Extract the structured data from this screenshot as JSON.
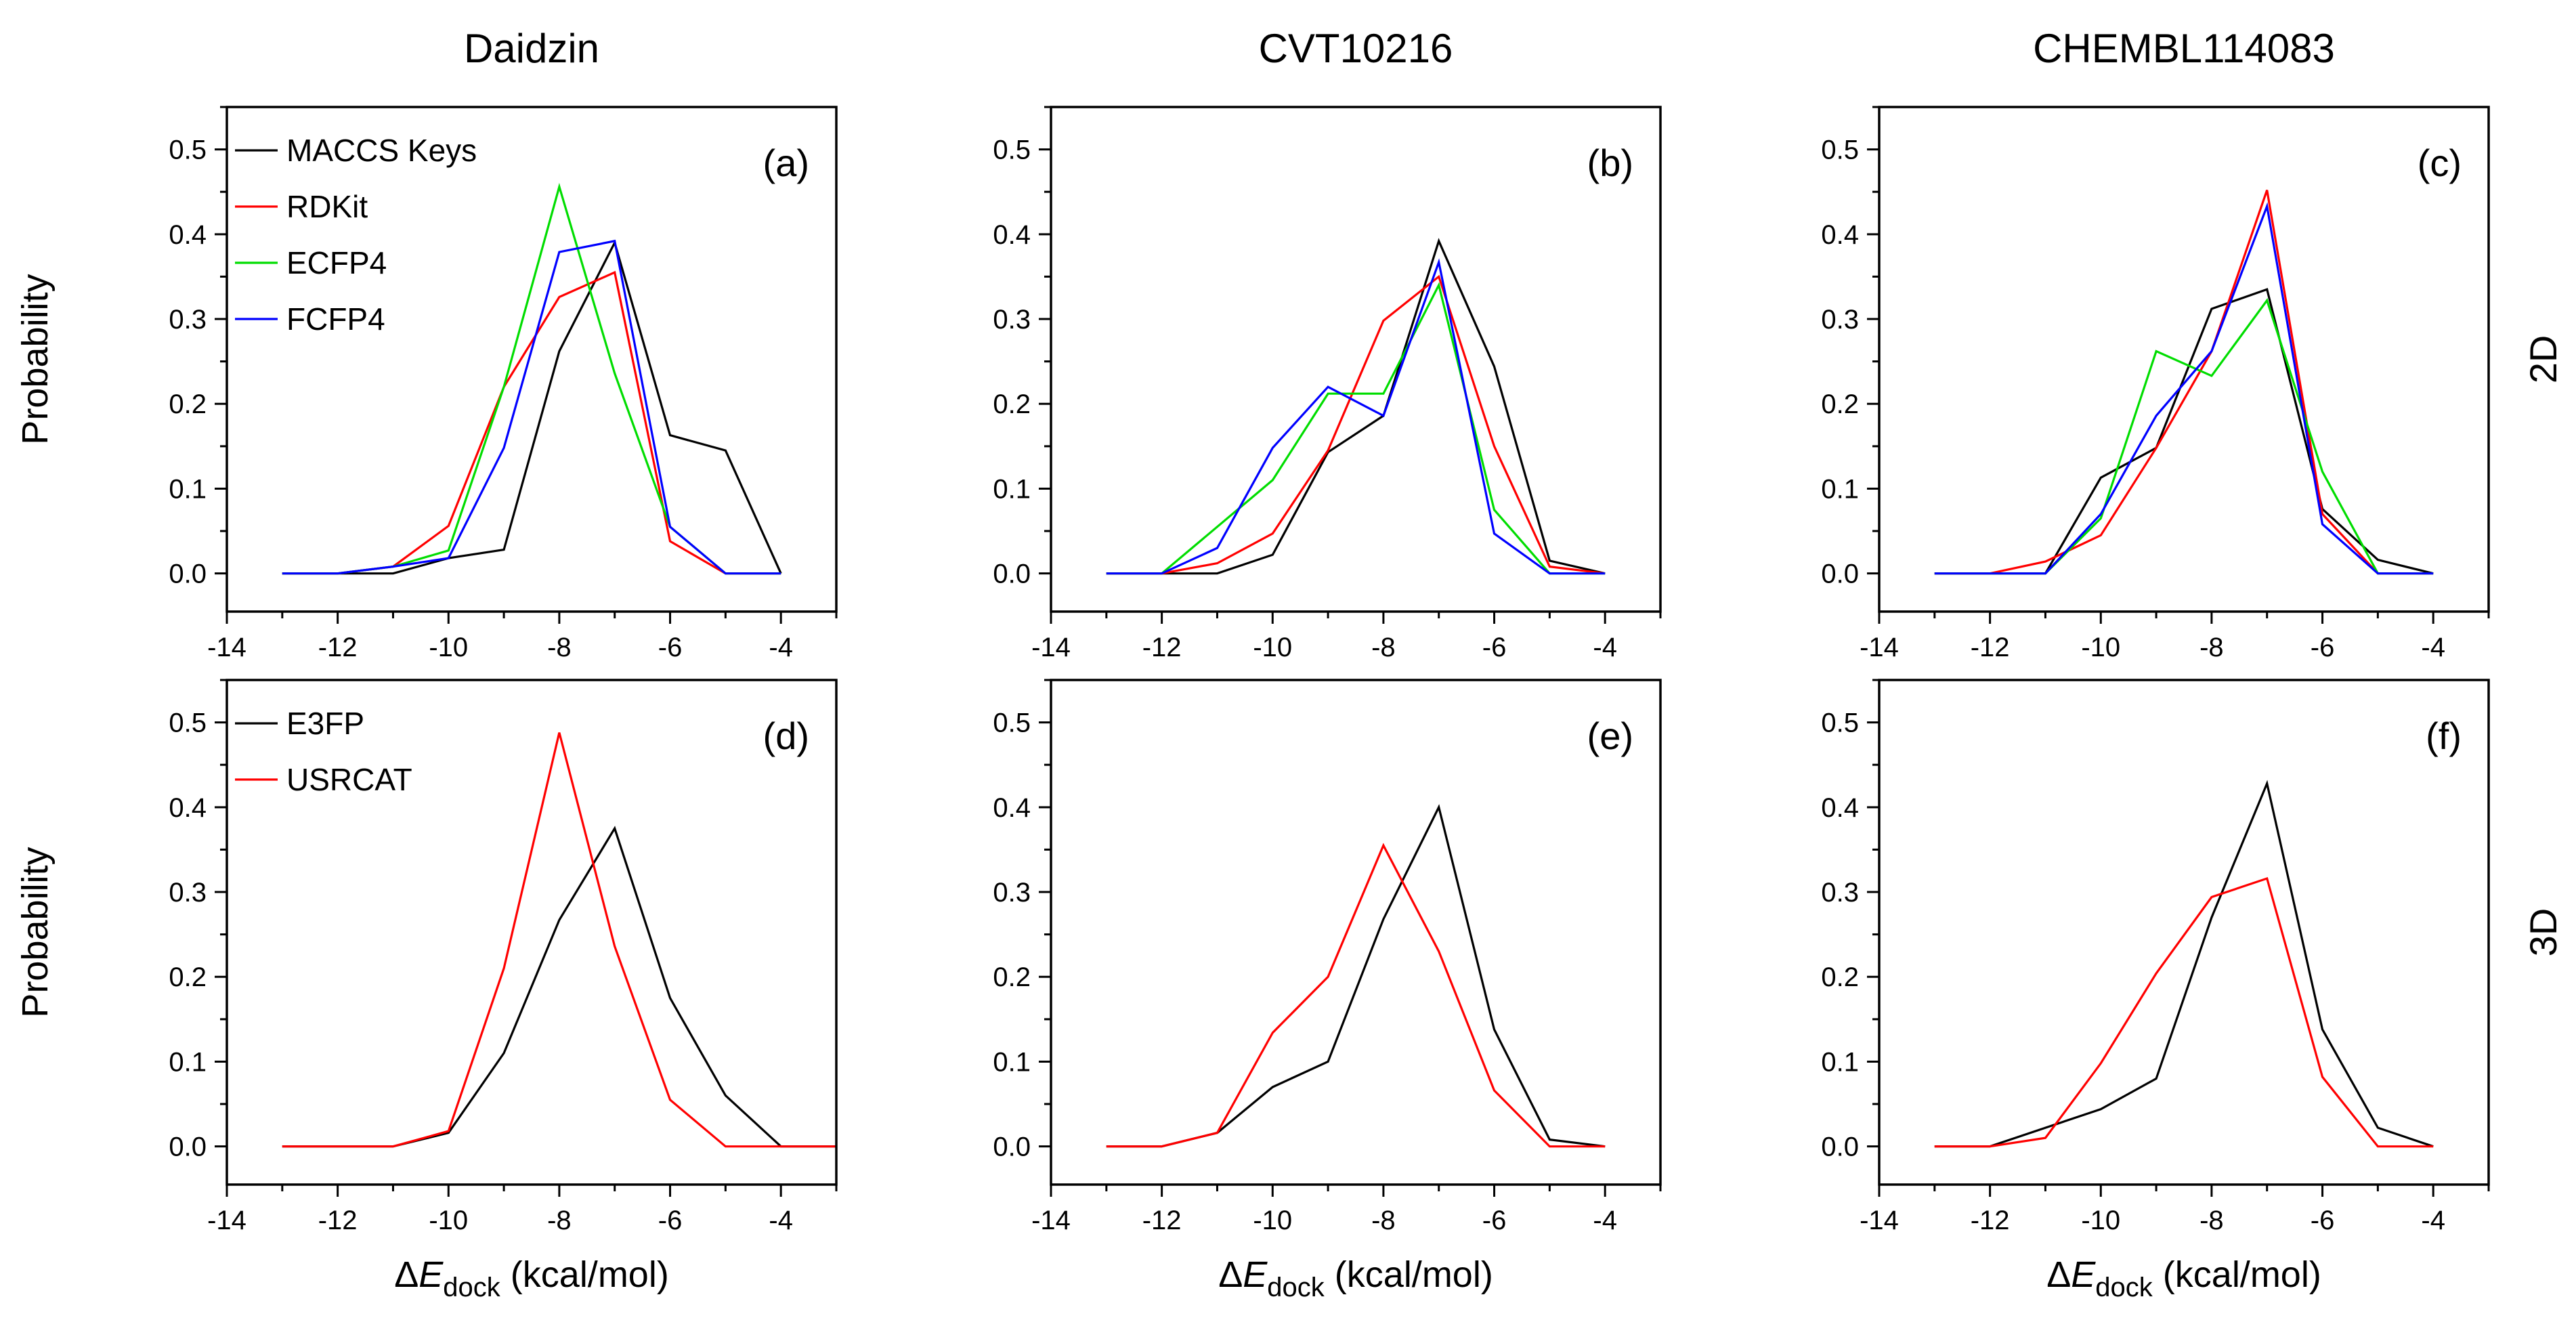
{
  "chart_data": {
    "type": "line",
    "column_titles": [
      "Daidzin",
      "CVT10216",
      "CHEMBL114083"
    ],
    "row_labels": [
      "2D",
      "3D"
    ],
    "ylabel": "Probability",
    "xlabel": {
      "delta": "Δ",
      "var": "E",
      "sub": "dock",
      "units": " (kcal/mol)"
    },
    "xlim": [
      -14,
      -3
    ],
    "ylim": [
      -0.045,
      0.55
    ],
    "x_ticks": [
      -14,
      -12,
      -10,
      -8,
      -6,
      -4
    ],
    "x_tick_labels": [
      "-14",
      "-12",
      "-10",
      "-8",
      "-6",
      "-4"
    ],
    "y_ticks": [
      0.0,
      0.1,
      0.2,
      0.3,
      0.4,
      0.5
    ],
    "y_tick_labels": [
      "0.0",
      "0.1",
      "0.2",
      "0.3",
      "0.4",
      "0.5"
    ],
    "panels": [
      {
        "label": "(a)",
        "ligand": "Daidzin",
        "type": "2D",
        "series": [
          {
            "name": "MACCS Keys",
            "color": "#000000",
            "x": [
              -13,
              -12,
              -11,
              -10,
              -9,
              -8,
              -7,
              -6,
              -5,
              -4
            ],
            "y": [
              0,
              0,
              0,
              0.018,
              0.028,
              0.262,
              0.39,
              0.163,
              0.145,
              0
            ]
          },
          {
            "name": "RDKit",
            "color": "#ff0000",
            "x": [
              -13,
              -12,
              -11,
              -10,
              -9,
              -8,
              -7,
              -6,
              -5,
              -4
            ],
            "y": [
              0,
              0,
              0.008,
              0.056,
              0.22,
              0.326,
              0.355,
              0.038,
              0,
              0
            ]
          },
          {
            "name": "ECFP4",
            "color": "#00dd00",
            "x": [
              -13,
              -12,
              -11,
              -10,
              -9,
              -8,
              -7,
              -6,
              -5,
              -4
            ],
            "y": [
              0,
              0,
              0.008,
              0.027,
              0.22,
              0.456,
              0.236,
              0.055,
              0,
              0
            ]
          },
          {
            "name": "FCFP4",
            "color": "#0000ff",
            "x": [
              -13,
              -12,
              -11,
              -10,
              -9,
              -8,
              -7,
              -6,
              -5,
              -4
            ],
            "y": [
              0,
              0,
              0.008,
              0.018,
              0.148,
              0.379,
              0.392,
              0.055,
              0,
              0
            ]
          }
        ]
      },
      {
        "label": "(b)",
        "ligand": "CVT10216",
        "type": "2D",
        "series": [
          {
            "name": "MACCS Keys",
            "color": "#000000",
            "x": [
              -13,
              -12,
              -11,
              -10,
              -9,
              -8,
              -7,
              -6,
              -5,
              -4
            ],
            "y": [
              0,
              0,
              0,
              0.022,
              0.143,
              0.186,
              0.392,
              0.244,
              0.015,
              0
            ]
          },
          {
            "name": "RDKit",
            "color": "#ff0000",
            "x": [
              -13,
              -12,
              -11,
              -10,
              -9,
              -8,
              -7,
              -6,
              -5,
              -4
            ],
            "y": [
              0,
              0,
              0.012,
              0.047,
              0.145,
              0.298,
              0.35,
              0.15,
              0.008,
              0
            ]
          },
          {
            "name": "ECFP4",
            "color": "#00dd00",
            "x": [
              -13,
              -12,
              -11,
              -10,
              -9,
              -8,
              -7,
              -6,
              -5,
              -4
            ],
            "y": [
              0,
              0,
              0.055,
              0.11,
              0.212,
              0.212,
              0.34,
              0.075,
              0,
              0
            ]
          },
          {
            "name": "FCFP4",
            "color": "#0000ff",
            "x": [
              -13,
              -12,
              -11,
              -10,
              -9,
              -8,
              -7,
              -6,
              -5,
              -4
            ],
            "y": [
              0,
              0,
              0.03,
              0.148,
              0.22,
              0.186,
              0.367,
              0.047,
              0,
              0
            ]
          }
        ]
      },
      {
        "label": "(c)",
        "ligand": "CHEMBL114083",
        "type": "2D",
        "series": [
          {
            "name": "MACCS Keys",
            "color": "#000000",
            "x": [
              -13,
              -12,
              -11,
              -10,
              -9,
              -8,
              -7,
              -6,
              -5,
              -4
            ],
            "y": [
              0,
              0,
              0,
              0.113,
              0.148,
              0.312,
              0.335,
              0.076,
              0.016,
              0
            ]
          },
          {
            "name": "RDKit",
            "color": "#ff0000",
            "x": [
              -13,
              -12,
              -11,
              -10,
              -9,
              -8,
              -7,
              -6,
              -5,
              -4
            ],
            "y": [
              0,
              0,
              0.014,
              0.045,
              0.148,
              0.262,
              0.452,
              0.07,
              0,
              0
            ]
          },
          {
            "name": "ECFP4",
            "color": "#00dd00",
            "x": [
              -13,
              -12,
              -11,
              -10,
              -9,
              -8,
              -7,
              -6,
              -5,
              -4
            ],
            "y": [
              0,
              0,
              0,
              0.065,
              0.262,
              0.233,
              0.322,
              0.12,
              0,
              0
            ]
          },
          {
            "name": "FCFP4",
            "color": "#0000ff",
            "x": [
              -13,
              -12,
              -11,
              -10,
              -9,
              -8,
              -7,
              -6,
              -5,
              -4
            ],
            "y": [
              0,
              0,
              0,
              0.07,
              0.186,
              0.262,
              0.433,
              0.058,
              0,
              0
            ]
          }
        ]
      },
      {
        "label": "(d)",
        "ligand": "Daidzin",
        "type": "3D",
        "series": [
          {
            "name": "E3FP",
            "color": "#000000",
            "x": [
              -13,
              -12,
              -11,
              -10,
              -9,
              -8,
              -7,
              -6,
              -5,
              -4,
              -3
            ],
            "y": [
              0,
              0,
              0,
              0.016,
              0.11,
              0.267,
              0.375,
              0.175,
              0.06,
              0,
              0
            ]
          },
          {
            "name": "USRCAT",
            "color": "#ff0000",
            "x": [
              -13,
              -12,
              -11,
              -10,
              -9,
              -8,
              -7,
              -6,
              -5,
              -4,
              -3
            ],
            "y": [
              0,
              0,
              0,
              0.018,
              0.21,
              0.488,
              0.236,
              0.055,
              0,
              0,
              0
            ]
          }
        ]
      },
      {
        "label": "(e)",
        "ligand": "CVT10216",
        "type": "3D",
        "series": [
          {
            "name": "E3FP",
            "color": "#000000",
            "x": [
              -13,
              -12,
              -11,
              -10,
              -9,
              -8,
              -7,
              -6,
              -5,
              -4
            ],
            "y": [
              0,
              0,
              0.016,
              0.07,
              0.1,
              0.268,
              0.4,
              0.138,
              0.008,
              0
            ]
          },
          {
            "name": "USRCAT",
            "color": "#ff0000",
            "x": [
              -13,
              -12,
              -11,
              -10,
              -9,
              -8,
              -7,
              -6,
              -5,
              -4
            ],
            "y": [
              0,
              0,
              0.016,
              0.134,
              0.2,
              0.355,
              0.23,
              0.066,
              0,
              0
            ]
          }
        ]
      },
      {
        "label": "(f)",
        "ligand": "CHEMBL114083",
        "type": "3D",
        "series": [
          {
            "name": "E3FP",
            "color": "#000000",
            "x": [
              -13,
              -12,
              -11,
              -10,
              -9,
              -8,
              -7,
              -6,
              -5,
              -4
            ],
            "y": [
              0,
              0,
              0.022,
              0.044,
              0.08,
              0.27,
              0.428,
              0.138,
              0.022,
              0
            ]
          },
          {
            "name": "USRCAT",
            "color": "#ff0000",
            "x": [
              -13,
              -12,
              -11,
              -10,
              -9,
              -8,
              -7,
              -6,
              -5,
              -4
            ],
            "y": [
              0,
              0,
              0.01,
              0.098,
              0.204,
              0.294,
              0.316,
              0.082,
              0,
              0
            ]
          }
        ]
      }
    ]
  }
}
